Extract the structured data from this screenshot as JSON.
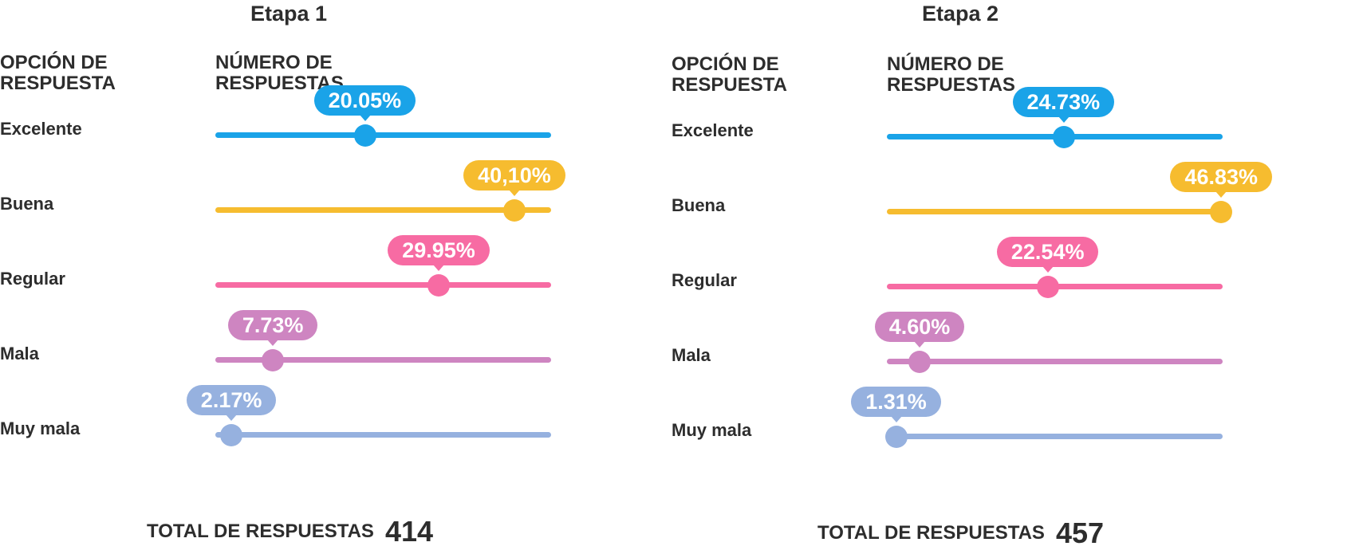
{
  "colors": {
    "excelente": "#1aa3e8",
    "buena": "#f6bc2f",
    "regular": "#f76ba3",
    "mala": "#ce85c1",
    "muy_mala": "#96b1df"
  },
  "labels": {
    "option_header": "OPCIÓN DE\nRESPUESTA",
    "count_header": "NÚMERO DE\nRESPUESTAS",
    "total_label": "TOTAL DE RESPUESTAS"
  },
  "chart_data": [
    {
      "type": "bar",
      "title": "Etapa 1",
      "categories": [
        "Excelente",
        "Buena",
        "Regular",
        "Mala",
        "Muy mala"
      ],
      "values": [
        20.05,
        40.1,
        29.95,
        7.73,
        2.17
      ],
      "value_labels": [
        "20.05%",
        "40,10%",
        "29.95%",
        "7.73%",
        "2.17%"
      ],
      "ylim": [
        0,
        45
      ],
      "total": "414"
    },
    {
      "type": "bar",
      "title": "Etapa 2",
      "categories": [
        "Excelente",
        "Buena",
        "Regular",
        "Mala",
        "Muy mala"
      ],
      "values": [
        24.73,
        46.83,
        22.54,
        4.6,
        1.31
      ],
      "value_labels": [
        "24.73%",
        "46.83%",
        "22.54%",
        "4.60%",
        "1.31%"
      ],
      "ylim": [
        0,
        47
      ],
      "total": "457"
    }
  ]
}
